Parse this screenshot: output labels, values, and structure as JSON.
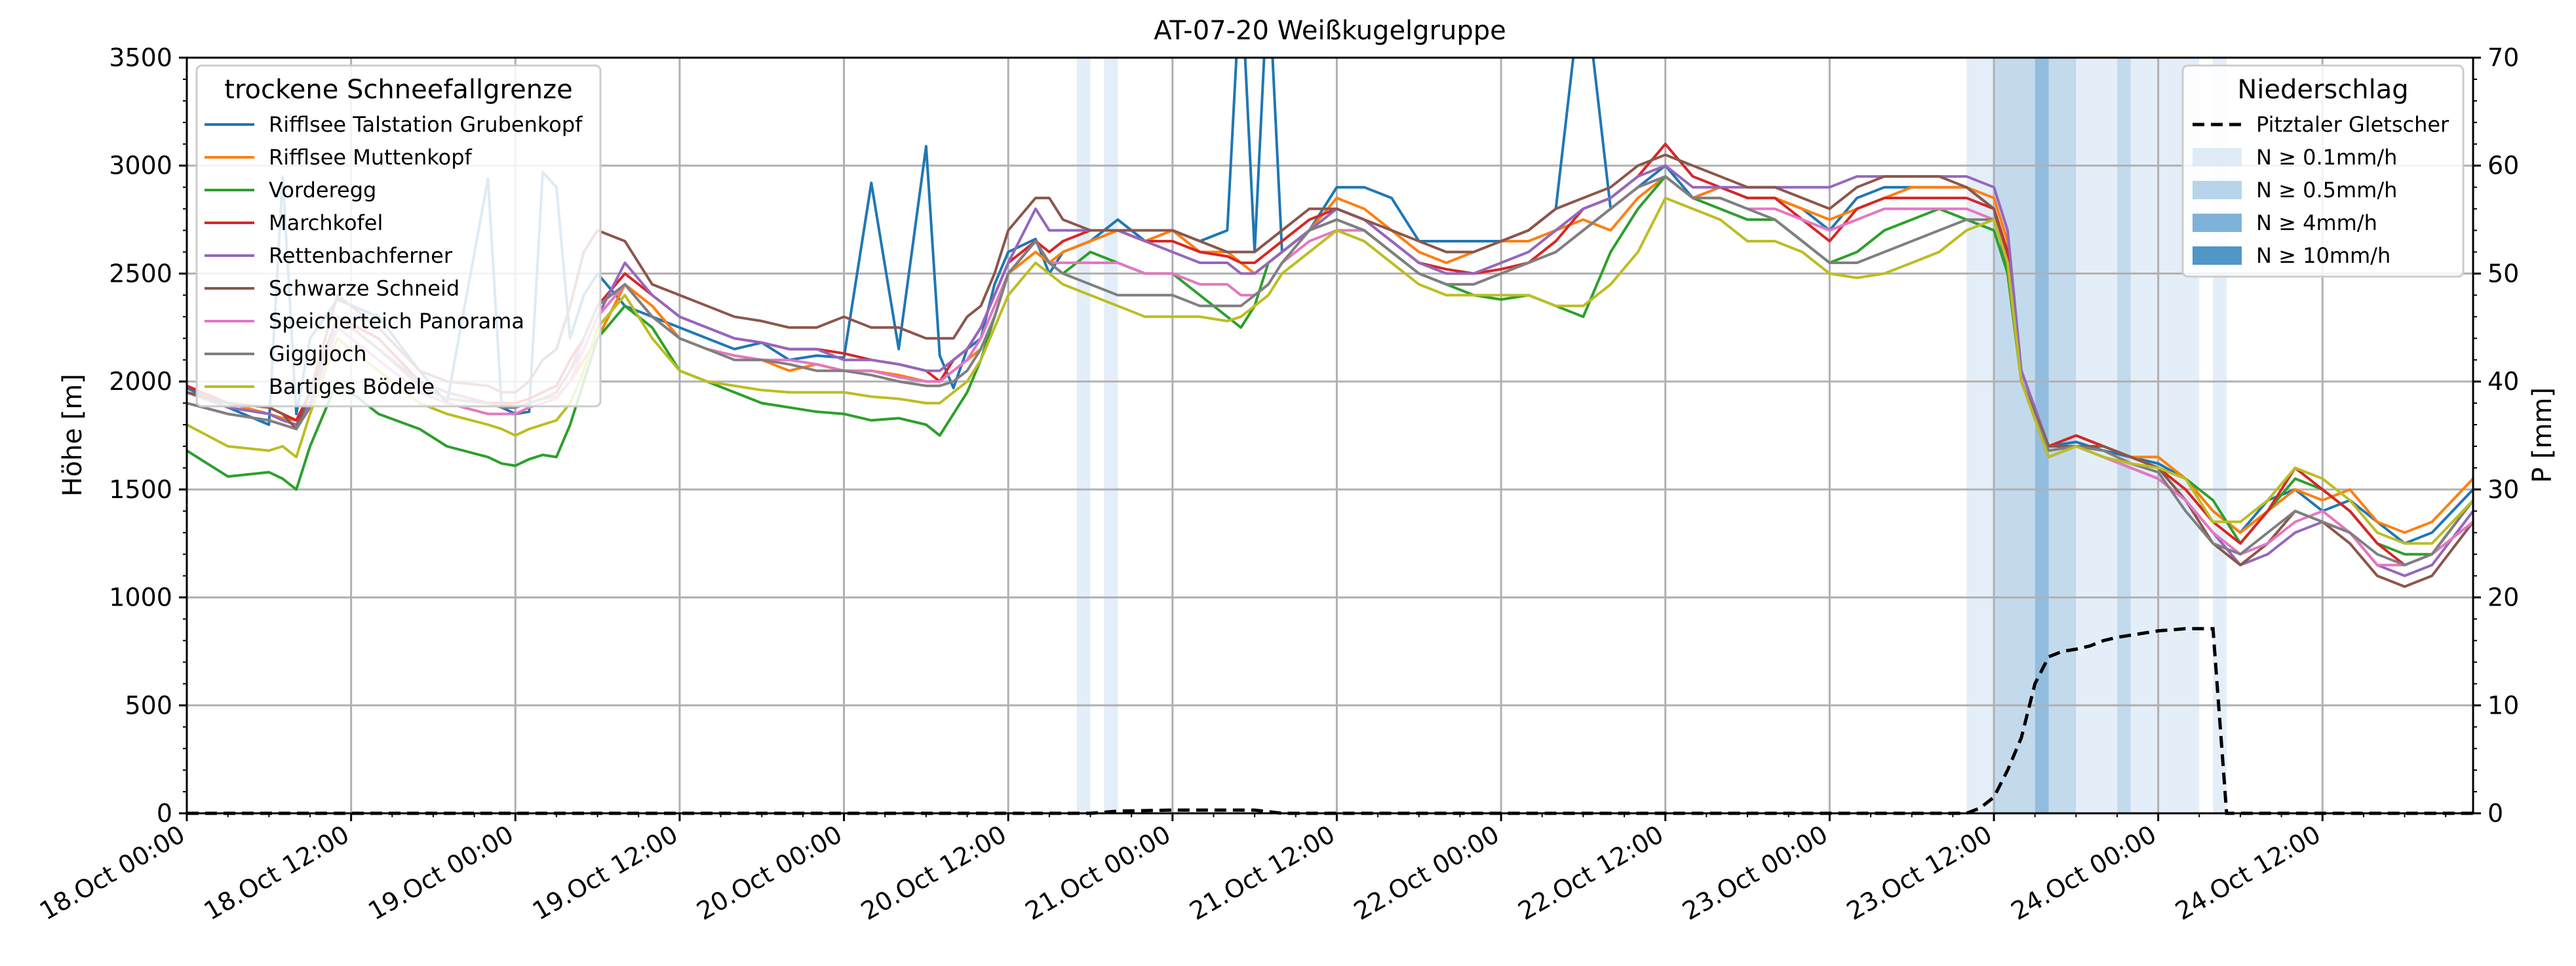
{
  "chart_data": {
    "type": "line",
    "title": "AT-07-20 Weißkugelgruppe",
    "ylabel": "Höhe [m]",
    "y2label": "P [mm]",
    "ylim": [
      0,
      3500
    ],
    "y2lim": [
      0,
      70
    ],
    "yticks": [
      0,
      500,
      1000,
      1500,
      2000,
      2500,
      3000,
      3500
    ],
    "y2ticks": [
      0,
      10,
      20,
      30,
      40,
      50,
      60,
      70
    ],
    "xlim_hours": [
      0,
      167
    ],
    "xticks": [
      {
        "h": 0,
        "label": "18.Oct 00:00"
      },
      {
        "h": 12,
        "label": "18.Oct 12:00"
      },
      {
        "h": 24,
        "label": "19.Oct 00:00"
      },
      {
        "h": 36,
        "label": "19.Oct 12:00"
      },
      {
        "h": 48,
        "label": "20.Oct 00:00"
      },
      {
        "h": 60,
        "label": "20.Oct 12:00"
      },
      {
        "h": 72,
        "label": "21.Oct 00:00"
      },
      {
        "h": 84,
        "label": "21.Oct 12:00"
      },
      {
        "h": 96,
        "label": "22.Oct 00:00"
      },
      {
        "h": 108,
        "label": "22.Oct 12:00"
      },
      {
        "h": 120,
        "label": "23.Oct 00:00"
      },
      {
        "h": 132,
        "label": "23.Oct 12:00"
      },
      {
        "h": 144,
        "label": "24.Oct 00:00"
      },
      {
        "h": 156,
        "label": "24.Oct 12:00"
      }
    ],
    "grid": true,
    "legend_left": {
      "title": "trockene Schneefallgrenze",
      "placement": "upper-left"
    },
    "legend_right": {
      "title": "Niederschlag",
      "placement": "upper-right",
      "precip_line": "Pitztaler Gletscher",
      "bands": [
        {
          "label": "N ≥ 0.1mm/h",
          "color": "#deebf7"
        },
        {
          "label": "N ≥ 0.5mm/h",
          "color": "#b8d4ea"
        },
        {
          "label": "N ≥ 4mm/h",
          "color": "#7fb2d8"
        },
        {
          "label": "N ≥ 10mm/h",
          "color": "#4f97c7"
        }
      ]
    },
    "precip_shading": [
      {
        "from": 65,
        "to": 66,
        "level": 0
      },
      {
        "from": 67,
        "to": 68,
        "level": 0
      },
      {
        "from": 130,
        "to": 131,
        "level": 0
      },
      {
        "from": 131,
        "to": 132,
        "level": 0
      },
      {
        "from": 132,
        "to": 135,
        "level": 1
      },
      {
        "from": 135,
        "to": 136,
        "level": 2
      },
      {
        "from": 136,
        "to": 138,
        "level": 1
      },
      {
        "from": 138,
        "to": 141,
        "level": 0
      },
      {
        "from": 141,
        "to": 142,
        "level": 1
      },
      {
        "from": 142,
        "to": 147,
        "level": 0
      },
      {
        "from": 148,
        "to": 149,
        "level": 0
      }
    ],
    "precip_cumulative": {
      "name": "Pitztaler Gletscher",
      "x": [
        0,
        66,
        68,
        72,
        78,
        80,
        130,
        131,
        132,
        133,
        134,
        135,
        136,
        137,
        138,
        139,
        140,
        141,
        142,
        143,
        144,
        145,
        146,
        147,
        148,
        149,
        150,
        151,
        167
      ],
      "values": [
        0,
        0,
        0.2,
        0.3,
        0.3,
        0,
        0,
        0.5,
        1.5,
        4,
        7,
        12,
        14.5,
        15,
        15.2,
        15.5,
        16,
        16.3,
        16.5,
        16.7,
        16.9,
        17,
        17.1,
        17.1,
        17.1,
        0,
        0,
        0,
        0
      ]
    },
    "x_hours": [
      0,
      3,
      6,
      7,
      8,
      9,
      11,
      14,
      17,
      19,
      22,
      23,
      24,
      25,
      26,
      27,
      28,
      29,
      30,
      32,
      34,
      36,
      38,
      40,
      42,
      44,
      46,
      48,
      50,
      52,
      54,
      55,
      56,
      57,
      58,
      59,
      60,
      62,
      63,
      64,
      66,
      68,
      70,
      72,
      74,
      76,
      77,
      78,
      79,
      80,
      82,
      84,
      86,
      88,
      90,
      92,
      94,
      96,
      98,
      100,
      102,
      104,
      106,
      108,
      110,
      112,
      114,
      116,
      118,
      120,
      122,
      124,
      126,
      128,
      130,
      132,
      133,
      134,
      136,
      138,
      140,
      142,
      144,
      146,
      148,
      150,
      152,
      154,
      156,
      158,
      160,
      162,
      164,
      167
    ],
    "series": [
      {
        "name": "Rifflsee Talstation Grubenkopf",
        "color": "#1f77b4",
        "values": [
          1970,
          1880,
          1800,
          2950,
          1850,
          2200,
          2380,
          2300,
          2050,
          1900,
          2940,
          1880,
          1850,
          1860,
          2970,
          2900,
          2200,
          2400,
          2500,
          2350,
          2300,
          2250,
          2200,
          2150,
          2180,
          2100,
          2120,
          2110,
          2920,
          2150,
          3090,
          2120,
          1970,
          2150,
          2200,
          2450,
          2600,
          2660,
          2500,
          2600,
          2650,
          2750,
          2650,
          2700,
          2650,
          2700,
          3900,
          2600,
          3900,
          2600,
          2700,
          2900,
          2900,
          2850,
          2650,
          2650,
          2650,
          2650,
          2700,
          2800,
          3900,
          2800,
          2900,
          3000,
          2850,
          2900,
          2850,
          2850,
          2800,
          2700,
          2850,
          2900,
          2900,
          2900,
          2900,
          2800,
          2500,
          2050,
          1700,
          1720,
          1680,
          1650,
          1620,
          1550,
          1400,
          1300,
          1450,
          1500,
          1400,
          1450,
          1350,
          1250,
          1300,
          1500
        ]
      },
      {
        "name": "Rifflsee Muttenkopf",
        "color": "#ff7f0e",
        "values": [
          1950,
          1900,
          1850,
          1830,
          1820,
          1900,
          2300,
          2200,
          2000,
          1950,
          1900,
          1900,
          1880,
          1900,
          1920,
          1930,
          2000,
          2100,
          2200,
          2450,
          2350,
          2200,
          2150,
          2120,
          2100,
          2050,
          2080,
          2050,
          2050,
          2030,
          2000,
          2000,
          2050,
          2100,
          2150,
          2300,
          2500,
          2600,
          2550,
          2600,
          2650,
          2700,
          2650,
          2700,
          2600,
          2600,
          2550,
          2500,
          2550,
          2600,
          2700,
          2850,
          2800,
          2700,
          2600,
          2550,
          2600,
          2650,
          2650,
          2700,
          2750,
          2700,
          2850,
          2950,
          2850,
          2900,
          2850,
          2850,
          2800,
          2750,
          2800,
          2850,
          2900,
          2900,
          2900,
          2850,
          2650,
          2000,
          1700,
          1750,
          1700,
          1650,
          1650,
          1550,
          1400,
          1300,
          1400,
          1500,
          1450,
          1500,
          1350,
          1300,
          1350,
          1550
        ]
      },
      {
        "name": "Vorderegg",
        "color": "#2ca02c",
        "values": [
          1680,
          1560,
          1580,
          1550,
          1500,
          1700,
          2000,
          1850,
          1780,
          1700,
          1650,
          1620,
          1610,
          1640,
          1660,
          1650,
          1800,
          2000,
          2200,
          2350,
          2250,
          2050,
          2000,
          1950,
          1900,
          1880,
          1860,
          1850,
          1820,
          1830,
          1800,
          1750,
          1850,
          1950,
          2100,
          2300,
          2500,
          2650,
          2550,
          2500,
          2600,
          2550,
          2500,
          2500,
          2400,
          2300,
          2250,
          2350,
          2550,
          2600,
          2700,
          2750,
          2700,
          2600,
          2500,
          2450,
          2400,
          2380,
          2400,
          2350,
          2300,
          2600,
          2800,
          2950,
          2850,
          2800,
          2750,
          2750,
          2650,
          2550,
          2600,
          2700,
          2750,
          2800,
          2750,
          2700,
          2500,
          2000,
          1700,
          1750,
          1700,
          1650,
          1600,
          1550,
          1450,
          1250,
          1400,
          1550,
          1500,
          1400,
          1250,
          1200,
          1200,
          1450
        ]
      },
      {
        "name": "Marchkofel",
        "color": "#d62728",
        "values": [
          1980,
          1900,
          1880,
          1850,
          1820,
          1950,
          2300,
          2200,
          2000,
          1950,
          1900,
          1900,
          1900,
          1920,
          1950,
          1980,
          2100,
          2200,
          2350,
          2500,
          2400,
          2300,
          2250,
          2200,
          2180,
          2150,
          2150,
          2130,
          2100,
          2080,
          2050,
          2000,
          2100,
          2150,
          2250,
          2400,
          2550,
          2650,
          2600,
          2650,
          2700,
          2700,
          2650,
          2650,
          2600,
          2580,
          2550,
          2550,
          2600,
          2650,
          2750,
          2800,
          2750,
          2650,
          2550,
          2520,
          2500,
          2520,
          2550,
          2650,
          2800,
          2850,
          2950,
          3100,
          2950,
          2900,
          2850,
          2850,
          2750,
          2650,
          2800,
          2850,
          2850,
          2850,
          2850,
          2800,
          2600,
          2050,
          1700,
          1750,
          1700,
          1650,
          1600,
          1500,
          1350,
          1250,
          1400,
          1600,
          1500,
          1400,
          1250,
          1150,
          1200,
          1450
        ]
      },
      {
        "name": "Rettenbachferner",
        "color": "#9467bd",
        "values": [
          1950,
          1880,
          1850,
          1820,
          1800,
          1900,
          2300,
          2150,
          2000,
          1950,
          1900,
          1880,
          1880,
          1900,
          1920,
          1950,
          2050,
          2150,
          2300,
          2550,
          2400,
          2300,
          2250,
          2200,
          2180,
          2150,
          2150,
          2100,
          2100,
          2080,
          2050,
          2050,
          2100,
          2150,
          2250,
          2400,
          2550,
          2800,
          2700,
          2700,
          2700,
          2700,
          2650,
          2600,
          2550,
          2550,
          2500,
          2500,
          2550,
          2600,
          2700,
          2800,
          2750,
          2650,
          2550,
          2500,
          2500,
          2550,
          2600,
          2700,
          2800,
          2850,
          2950,
          3000,
          2900,
          2900,
          2900,
          2900,
          2900,
          2900,
          2950,
          2950,
          2950,
          2950,
          2950,
          2900,
          2700,
          2050,
          1700,
          1700,
          1650,
          1600,
          1550,
          1450,
          1300,
          1150,
          1200,
          1300,
          1350,
          1300,
          1150,
          1100,
          1150,
          1400
        ]
      },
      {
        "name": "Schwarze Schneid",
        "color": "#8c564b",
        "values": [
          1950,
          1900,
          1880,
          1850,
          1780,
          1950,
          2400,
          2250,
          2050,
          2000,
          1980,
          1950,
          1950,
          2000,
          2100,
          2150,
          2350,
          2600,
          2700,
          2650,
          2450,
          2400,
          2350,
          2300,
          2280,
          2250,
          2250,
          2300,
          2250,
          2250,
          2200,
          2200,
          2200,
          2300,
          2350,
          2500,
          2700,
          2850,
          2850,
          2750,
          2700,
          2700,
          2700,
          2700,
          2650,
          2600,
          2600,
          2600,
          2650,
          2700,
          2800,
          2800,
          2750,
          2700,
          2650,
          2600,
          2600,
          2650,
          2700,
          2800,
          2850,
          2900,
          3000,
          3050,
          3000,
          2950,
          2900,
          2900,
          2850,
          2800,
          2900,
          2950,
          2950,
          2950,
          2900,
          2800,
          2550,
          2000,
          1700,
          1700,
          1700,
          1650,
          1600,
          1450,
          1250,
          1150,
          1250,
          1400,
          1350,
          1250,
          1100,
          1050,
          1100,
          1350
        ]
      },
      {
        "name": "Speicherteich Panorama",
        "color": "#e377c2",
        "values": [
          1900,
          1850,
          1820,
          1800,
          1780,
          1880,
          2250,
          2100,
          1950,
          1900,
          1850,
          1850,
          1850,
          1880,
          1900,
          1920,
          2000,
          2150,
          2300,
          2450,
          2300,
          2200,
          2150,
          2120,
          2100,
          2100,
          2080,
          2050,
          2050,
          2020,
          2000,
          2000,
          2050,
          2100,
          2200,
          2350,
          2500,
          2650,
          2550,
          2550,
          2550,
          2550,
          2500,
          2500,
          2450,
          2450,
          2400,
          2400,
          2450,
          2550,
          2650,
          2700,
          2700,
          2600,
          2500,
          2450,
          2450,
          2500,
          2550,
          2600,
          2700,
          2800,
          2900,
          2950,
          2850,
          2850,
          2800,
          2800,
          2750,
          2700,
          2750,
          2800,
          2800,
          2800,
          2800,
          2750,
          2550,
          2000,
          1650,
          1700,
          1650,
          1600,
          1550,
          1450,
          1300,
          1200,
          1250,
          1350,
          1400,
          1300,
          1150,
          1150,
          1200,
          1350
        ]
      },
      {
        "name": "Giggijoch",
        "color": "#7f7f7f",
        "values": [
          1900,
          1850,
          1820,
          1800,
          1780,
          1880,
          2300,
          2150,
          1980,
          1920,
          1900,
          1880,
          1880,
          1900,
          1920,
          1950,
          2050,
          2200,
          2350,
          2450,
          2300,
          2200,
          2150,
          2100,
          2100,
          2080,
          2050,
          2050,
          2030,
          2000,
          1980,
          1980,
          2000,
          2050,
          2150,
          2300,
          2500,
          2650,
          2550,
          2500,
          2450,
          2400,
          2400,
          2400,
          2350,
          2350,
          2350,
          2400,
          2450,
          2550,
          2700,
          2750,
          2700,
          2600,
          2500,
          2450,
          2450,
          2500,
          2550,
          2600,
          2700,
          2800,
          2900,
          2950,
          2850,
          2850,
          2800,
          2750,
          2650,
          2550,
          2550,
          2600,
          2650,
          2700,
          2750,
          2750,
          2550,
          2000,
          1680,
          1700,
          1680,
          1620,
          1580,
          1400,
          1250,
          1200,
          1300,
          1400,
          1350,
          1300,
          1200,
          1150,
          1200,
          1450
        ]
      },
      {
        "name": "Bartiges Bödele",
        "color": "#bcbd22",
        "values": [
          1800,
          1700,
          1680,
          1700,
          1650,
          1850,
          2200,
          2050,
          1900,
          1850,
          1800,
          1780,
          1750,
          1780,
          1800,
          1820,
          1900,
          2050,
          2250,
          2400,
          2200,
          2050,
          2000,
          1980,
          1960,
          1950,
          1950,
          1950,
          1930,
          1920,
          1900,
          1900,
          1950,
          2000,
          2100,
          2250,
          2400,
          2550,
          2500,
          2450,
          2400,
          2350,
          2300,
          2300,
          2300,
          2280,
          2300,
          2350,
          2400,
          2500,
          2600,
          2700,
          2650,
          2550,
          2450,
          2400,
          2400,
          2400,
          2400,
          2350,
          2350,
          2450,
          2600,
          2850,
          2800,
          2750,
          2650,
          2650,
          2600,
          2500,
          2480,
          2500,
          2550,
          2600,
          2700,
          2750,
          2550,
          2000,
          1650,
          1700,
          1650,
          1620,
          1600,
          1550,
          1350,
          1350,
          1450,
          1600,
          1550,
          1450,
          1300,
          1250,
          1250,
          1450
        ]
      }
    ]
  }
}
